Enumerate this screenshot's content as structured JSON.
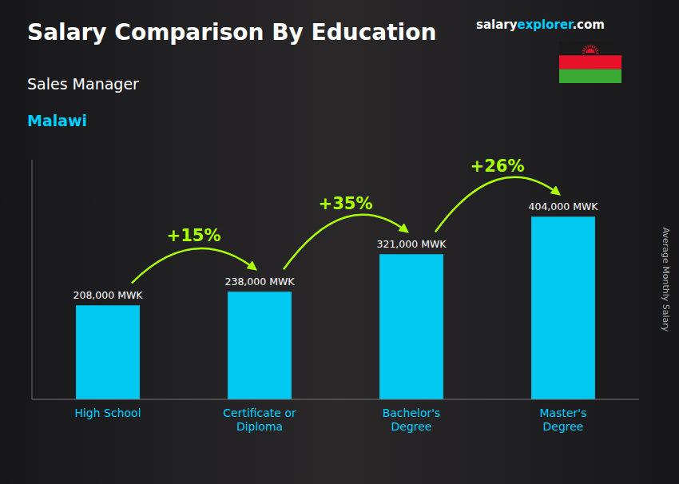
{
  "chart_data": {
    "type": "bar",
    "title": "Salary Comparison By Education",
    "subtitle": [
      "Sales Manager",
      "Malawi"
    ],
    "ylabel": "Average Monthly Salary",
    "annotations": [
      "salary",
      "explorer",
      ".com",
      "+15%",
      "+35%",
      "+26%"
    ],
    "categories": [
      "High School",
      "Certificate or\nDiploma",
      "Bachelor's\nDegree",
      "Master's\nDegree"
    ],
    "values": [
      208000,
      238000,
      321000,
      404000
    ],
    "value_labels": [
      "208,000 MWK",
      "238,000 MWK",
      "321,000 MWK",
      "404,000 MWK"
    ],
    "data_labels": true,
    "color": "#00c8f0",
    "ylim": [
      0,
      530000
    ],
    "tick_labels": "x",
    "grid": false
  }
}
